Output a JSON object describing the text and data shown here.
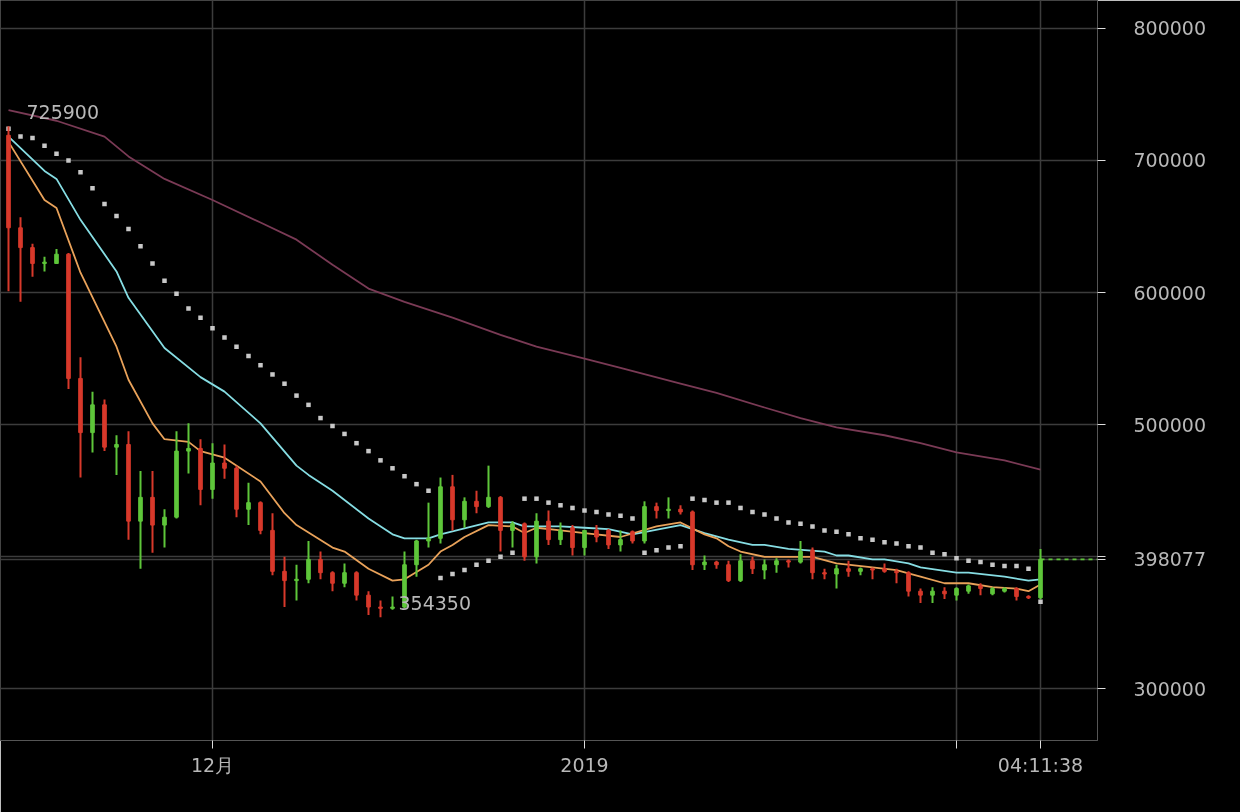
{
  "chart_data": {
    "type": "candlestick",
    "x": [
      "2018-11-14",
      "2018-11-15",
      "2018-11-16",
      "2018-11-17",
      "2018-11-18",
      "2018-11-19",
      "2018-11-20",
      "2018-11-21",
      "2018-11-22",
      "2018-11-23",
      "2018-11-24",
      "2018-11-25",
      "2018-11-26",
      "2018-11-27",
      "2018-11-28",
      "2018-11-29",
      "2018-11-30",
      "2018-12-01",
      "2018-12-02",
      "2018-12-03",
      "2018-12-04",
      "2018-12-05",
      "2018-12-06",
      "2018-12-07",
      "2018-12-08",
      "2018-12-09",
      "2018-12-10",
      "2018-12-11",
      "2018-12-12",
      "2018-12-13",
      "2018-12-14",
      "2018-12-15",
      "2018-12-16",
      "2018-12-17",
      "2018-12-18",
      "2018-12-19",
      "2018-12-20",
      "2018-12-21",
      "2018-12-22",
      "2018-12-23",
      "2018-12-24",
      "2018-12-25",
      "2018-12-26",
      "2018-12-27",
      "2018-12-28",
      "2018-12-29",
      "2018-12-30",
      "2018-12-31",
      "2019-01-01",
      "2019-01-02",
      "2019-01-03",
      "2019-01-04",
      "2019-01-05",
      "2019-01-06",
      "2019-01-07",
      "2019-01-08",
      "2019-01-09",
      "2019-01-10",
      "2019-01-11",
      "2019-01-12",
      "2019-01-13",
      "2019-01-14",
      "2019-01-15",
      "2019-01-16",
      "2019-01-17",
      "2019-01-18",
      "2019-01-19",
      "2019-01-20",
      "2019-01-21",
      "2019-01-22",
      "2019-01-23",
      "2019-01-24",
      "2019-01-25",
      "2019-01-26",
      "2019-01-27",
      "2019-01-28",
      "2019-01-29",
      "2019-01-30",
      "2019-01-31",
      "2019-02-01",
      "2019-02-02",
      "2019-02-03",
      "2019-02-04",
      "2019-02-05",
      "2019-02-06",
      "2019-02-07",
      "2019-02-08"
    ],
    "ohlc": [
      [
        719000,
        725900,
        601000,
        649000
      ],
      [
        649000,
        657000,
        593000,
        634000
      ],
      [
        634000,
        637000,
        612000,
        622000
      ],
      [
        622000,
        627000,
        616000,
        623000
      ],
      [
        622000,
        633000,
        622000,
        629000
      ],
      [
        629000,
        630000,
        527000,
        535000
      ],
      [
        535000,
        551000,
        460000,
        494000
      ],
      [
        494000,
        525000,
        479000,
        515000
      ],
      [
        515000,
        519000,
        480000,
        483000
      ],
      [
        483000,
        492000,
        462000,
        485000
      ],
      [
        485000,
        495000,
        413000,
        427000
      ],
      [
        427000,
        465000,
        391000,
        445000
      ],
      [
        445000,
        465000,
        403000,
        424000
      ],
      [
        424000,
        436000,
        407000,
        430000
      ],
      [
        430000,
        495000,
        429000,
        480000
      ],
      [
        480000,
        501000,
        463000,
        482000
      ],
      [
        482000,
        489000,
        439000,
        451000
      ],
      [
        451000,
        486000,
        444000,
        471000
      ],
      [
        471000,
        485000,
        459000,
        467000
      ],
      [
        467000,
        469000,
        430000,
        436000
      ],
      [
        436000,
        456000,
        424000,
        441000
      ],
      [
        441000,
        442000,
        417000,
        420000
      ],
      [
        420000,
        433000,
        386000,
        389000
      ],
      [
        389000,
        400000,
        362000,
        382000
      ],
      [
        382000,
        394000,
        367000,
        383000
      ],
      [
        383000,
        412000,
        380000,
        398000
      ],
      [
        398000,
        404000,
        383000,
        388000
      ],
      [
        388000,
        389000,
        374000,
        380000
      ],
      [
        380000,
        395000,
        377000,
        388000
      ],
      [
        388000,
        389000,
        367000,
        371000
      ],
      [
        371000,
        374000,
        356000,
        362000
      ],
      [
        362000,
        367000,
        354350,
        361000
      ],
      [
        361000,
        370000,
        360000,
        362000
      ],
      [
        362000,
        404000,
        361000,
        394000
      ],
      [
        394000,
        413000,
        385000,
        412000
      ],
      [
        412000,
        441000,
        407000,
        414000
      ],
      [
        414000,
        460000,
        410000,
        453000
      ],
      [
        453000,
        462000,
        420000,
        428000
      ],
      [
        428000,
        445000,
        422000,
        442000
      ],
      [
        442000,
        450000,
        433000,
        438000
      ],
      [
        438000,
        469000,
        437000,
        445000
      ],
      [
        445000,
        446000,
        404000,
        420000
      ],
      [
        420000,
        427000,
        407000,
        425000
      ],
      [
        425000,
        426000,
        397000,
        400000
      ],
      [
        400000,
        433000,
        395000,
        427000
      ],
      [
        427000,
        435000,
        409000,
        413000
      ],
      [
        413000,
        426000,
        409000,
        420000
      ],
      [
        422000,
        424000,
        401000,
        407000
      ],
      [
        407000,
        420000,
        401000,
        420000
      ],
      [
        420000,
        424000,
        411000,
        415000
      ],
      [
        420000,
        421000,
        406000,
        409000
      ],
      [
        409000,
        420000,
        404000,
        413000
      ],
      [
        419000,
        420000,
        410000,
        412000
      ],
      [
        412000,
        442000,
        410000,
        438000
      ],
      [
        438000,
        441000,
        429000,
        435000
      ],
      [
        435000,
        445000,
        429000,
        436000
      ],
      [
        436000,
        439000,
        432000,
        434000
      ],
      [
        434000,
        435000,
        390000,
        394000
      ],
      [
        394000,
        401000,
        390000,
        396000
      ],
      [
        396000,
        397000,
        391000,
        394000
      ],
      [
        394000,
        397000,
        381000,
        382000
      ],
      [
        382000,
        402000,
        381000,
        397000
      ],
      [
        397000,
        400000,
        387000,
        391000
      ],
      [
        390000,
        398000,
        383000,
        394000
      ],
      [
        394000,
        399000,
        388000,
        397000
      ],
      [
        397000,
        398000,
        392000,
        396000
      ],
      [
        396000,
        412000,
        395000,
        404000
      ],
      [
        405000,
        407000,
        383000,
        388000
      ],
      [
        388000,
        391000,
        383000,
        387000
      ],
      [
        387000,
        394000,
        376000,
        391000
      ],
      [
        391000,
        397000,
        385000,
        389000
      ],
      [
        389000,
        392000,
        386000,
        391000
      ],
      [
        391000,
        392000,
        383000,
        390000
      ],
      [
        391000,
        395000,
        388000,
        389000
      ],
      [
        389000,
        391000,
        380000,
        388000
      ],
      [
        388000,
        389000,
        370000,
        374000
      ],
      [
        374000,
        376000,
        365000,
        371000
      ],
      [
        371000,
        377000,
        365000,
        374000
      ],
      [
        374000,
        377000,
        368000,
        372000
      ],
      [
        371000,
        377000,
        367000,
        376000
      ],
      [
        374000,
        379000,
        372000,
        378000
      ],
      [
        378000,
        380000,
        371000,
        376000
      ],
      [
        372000,
        377000,
        371000,
        376000
      ],
      [
        374000,
        377000,
        373000,
        376000
      ],
      [
        376000,
        377000,
        367000,
        370000
      ],
      [
        370000,
        371000,
        368000,
        369000
      ],
      [
        369000,
        406000,
        368000,
        398077
      ]
    ],
    "colors": [
      "#d8392b",
      "#d8392b",
      "#d8392b",
      "#5ec63a",
      "#5ec63a",
      "#d8392b",
      "#d8392b",
      "#5ec63a",
      "#d8392b",
      "#5ec63a",
      "#d8392b",
      "#5ec63a",
      "#d8392b",
      "#5ec63a",
      "#5ec63a",
      "#5ec63a",
      "#d8392b",
      "#5ec63a",
      "#d8392b",
      "#d8392b",
      "#5ec63a",
      "#d8392b",
      "#d8392b",
      "#d8392b",
      "#5ec63a",
      "#5ec63a",
      "#d8392b",
      "#d8392b",
      "#5ec63a",
      "#d8392b",
      "#d8392b",
      "#d8392b",
      "#5ec63a",
      "#5ec63a",
      "#5ec63a",
      "#5ec63a",
      "#5ec63a",
      "#d8392b",
      "#5ec63a",
      "#d8392b",
      "#5ec63a",
      "#d8392b",
      "#5ec63a",
      "#d8392b",
      "#5ec63a",
      "#d8392b",
      "#5ec63a",
      "#d8392b",
      "#5ec63a",
      "#d8392b",
      "#d8392b",
      "#5ec63a",
      "#d8392b",
      "#5ec63a",
      "#d8392b",
      "#5ec63a",
      "#d8392b",
      "#d8392b",
      "#5ec63a",
      "#d8392b",
      "#d8392b",
      "#5ec63a",
      "#d8392b",
      "#5ec63a",
      "#5ec63a",
      "#d8392b",
      "#5ec63a",
      "#d8392b",
      "#d8392b",
      "#5ec63a",
      "#d8392b",
      "#5ec63a",
      "#d8392b",
      "#d8392b",
      "#d8392b",
      "#d8392b",
      "#d8392b",
      "#5ec63a",
      "#d8392b",
      "#5ec63a",
      "#5ec63a",
      "#d8392b",
      "#5ec63a",
      "#5ec63a",
      "#d8392b",
      "#d8392b",
      "#5ec63a"
    ],
    "series": [
      {
        "type": "line",
        "color": "#7a3a55",
        "x": [
          "2018-11-14",
          "2018-11-18",
          "2018-11-22",
          "2018-11-24",
          "2018-11-27",
          "2018-12-01",
          "2018-12-05",
          "2018-12-08",
          "2018-12-11",
          "2018-12-14",
          "2018-12-17",
          "2018-12-21",
          "2018-12-25",
          "2018-12-28",
          "2019-01-01",
          "2019-01-04",
          "2019-01-09",
          "2019-01-12",
          "2019-01-16",
          "2019-01-19",
          "2019-01-22",
          "2019-01-26",
          "2019-01-29",
          "2019-02-01",
          "2019-02-05",
          "2019-02-08"
        ],
        "values": [
          738000,
          730000,
          718000,
          703000,
          686000,
          670000,
          653000,
          640000,
          621000,
          603000,
          593000,
          581000,
          568000,
          559000,
          550000,
          543000,
          531000,
          524000,
          513000,
          505000,
          498000,
          492000,
          486000,
          479000,
          473000,
          466000
        ]
      },
      {
        "type": "line",
        "color": "#86dde3",
        "x": [
          "2018-11-14",
          "2018-11-17",
          "2018-11-18",
          "2018-11-20",
          "2018-11-23",
          "2018-11-24",
          "2018-11-27",
          "2018-11-30",
          "2018-12-02",
          "2018-12-05",
          "2018-12-08",
          "2018-12-09",
          "2018-12-11",
          "2018-12-14",
          "2018-12-16",
          "2018-12-17",
          "2018-12-19",
          "2018-12-20",
          "2018-12-24",
          "2018-12-26",
          "2018-12-27",
          "2018-12-30",
          "2019-01-01",
          "2019-01-03",
          "2019-01-05",
          "2019-01-09",
          "2019-01-11",
          "2019-01-13",
          "2019-01-15",
          "2019-01-16",
          "2019-01-18",
          "2019-01-21",
          "2019-01-22",
          "2019-01-23",
          "2019-01-25",
          "2019-01-26",
          "2019-01-28",
          "2019-01-29",
          "2019-02-01",
          "2019-02-02",
          "2019-02-05",
          "2019-02-07",
          "2019-02-08"
        ],
        "values": [
          718000,
          692000,
          686000,
          655000,
          616000,
          596000,
          558000,
          536000,
          525000,
          501000,
          469000,
          462000,
          450000,
          429000,
          417000,
          414000,
          414000,
          417000,
          426000,
          426000,
          423000,
          423000,
          422000,
          421000,
          417000,
          424000,
          418000,
          413000,
          409000,
          409000,
          406000,
          404000,
          401000,
          401000,
          398000,
          398000,
          395000,
          392000,
          388000,
          388000,
          385000,
          382000,
          383000
        ]
      },
      {
        "type": "line",
        "color": "#e9a25a",
        "x": [
          "2018-11-14",
          "2018-11-17",
          "2018-11-18",
          "2018-11-20",
          "2018-11-23",
          "2018-11-24",
          "2018-11-26",
          "2018-11-27",
          "2018-11-29",
          "2018-11-30",
          "2018-12-02",
          "2018-12-05",
          "2018-12-07",
          "2018-12-08",
          "2018-12-11",
          "2018-12-12",
          "2018-12-14",
          "2018-12-16",
          "2018-12-17",
          "2018-12-19",
          "2018-12-20",
          "2018-12-21",
          "2018-12-22",
          "2018-12-24",
          "2018-12-26",
          "2018-12-27",
          "2018-12-28",
          "2018-12-30",
          "2019-01-01",
          "2019-01-04",
          "2019-01-07",
          "2019-01-09",
          "2019-01-11",
          "2019-01-12",
          "2019-01-13",
          "2019-01-14",
          "2019-01-16",
          "2019-01-18",
          "2019-01-20",
          "2019-01-22",
          "2019-01-25",
          "2019-01-27",
          "2019-01-29",
          "2019-01-31",
          "2019-02-02",
          "2019-02-04",
          "2019-02-06",
          "2019-02-07",
          "2019-02-08"
        ],
        "values": [
          714000,
          670000,
          664000,
          615000,
          559000,
          534000,
          501000,
          489000,
          487000,
          480000,
          475000,
          457000,
          433000,
          424000,
          407000,
          404000,
          391000,
          382000,
          383000,
          394000,
          404000,
          409000,
          415000,
          424000,
          423000,
          418000,
          422000,
          420000,
          418000,
          415000,
          423000,
          426000,
          417000,
          414000,
          408000,
          404000,
          400000,
          400000,
          400000,
          395000,
          392000,
          390000,
          385000,
          380000,
          380000,
          377000,
          376000,
          374000,
          379000
        ]
      },
      {
        "type": "line",
        "color": "#5ec63a",
        "line_style": "dashed",
        "x": [
          "2019-02-08",
          "2019-02-12T18:00"
        ],
        "values": [
          398077,
          398077
        ]
      },
      {
        "type": "scatter",
        "marker": "square",
        "color": "#c8c8c8",
        "values": [
          724000,
          718000,
          717000,
          711000,
          705000,
          700000,
          691000,
          679000,
          667000,
          658000,
          648000,
          635000,
          622000,
          609000,
          599000,
          588000,
          581000,
          573000,
          566000,
          559000,
          552000,
          545000,
          538000,
          531000,
          522000,
          515000,
          505000,
          499000,
          493000,
          486000,
          480000,
          473000,
          467000,
          461000,
          455000,
          450000,
          384000,
          387000,
          390000,
          394000,
          397000,
          400000,
          403000,
          444000,
          444000,
          441000,
          439000,
          437000,
          435000,
          434000,
          432000,
          431000,
          429000,
          403000,
          405000,
          407000,
          408000,
          444000,
          443000,
          441000,
          441000,
          437000,
          434000,
          432000,
          429000,
          426000,
          425000,
          423000,
          420000,
          419000,
          417000,
          414000,
          413000,
          411000,
          410000,
          408000,
          407000,
          403000,
          402000,
          399000,
          397000,
          396000,
          394000,
          393000,
          393000,
          391000,
          366000
        ]
      }
    ],
    "xlim": [
      "2018-11-13T08:00",
      "2019-02-12T18:00"
    ],
    "xticks": [
      {
        "value": "2018-12-01",
        "label": "12月"
      },
      {
        "value": "2019-01-01",
        "label": "2019"
      },
      {
        "value": "2019-02-01",
        "label": null
      },
      {
        "value": "2019-02-08",
        "label": "04:11:38"
      }
    ],
    "ylim": [
      261000,
      821000
    ],
    "yticks": [
      300000,
      398077,
      {
        "value": 400000,
        "label": null
      },
      500000,
      600000,
      700000,
      800000
    ],
    "grid": true,
    "annotations": [
      {
        "text": "725900",
        "x": "2018-11-14",
        "y": 725900
      },
      {
        "text": "354350",
        "x": "2018-12-15",
        "y": 354350
      }
    ]
  }
}
